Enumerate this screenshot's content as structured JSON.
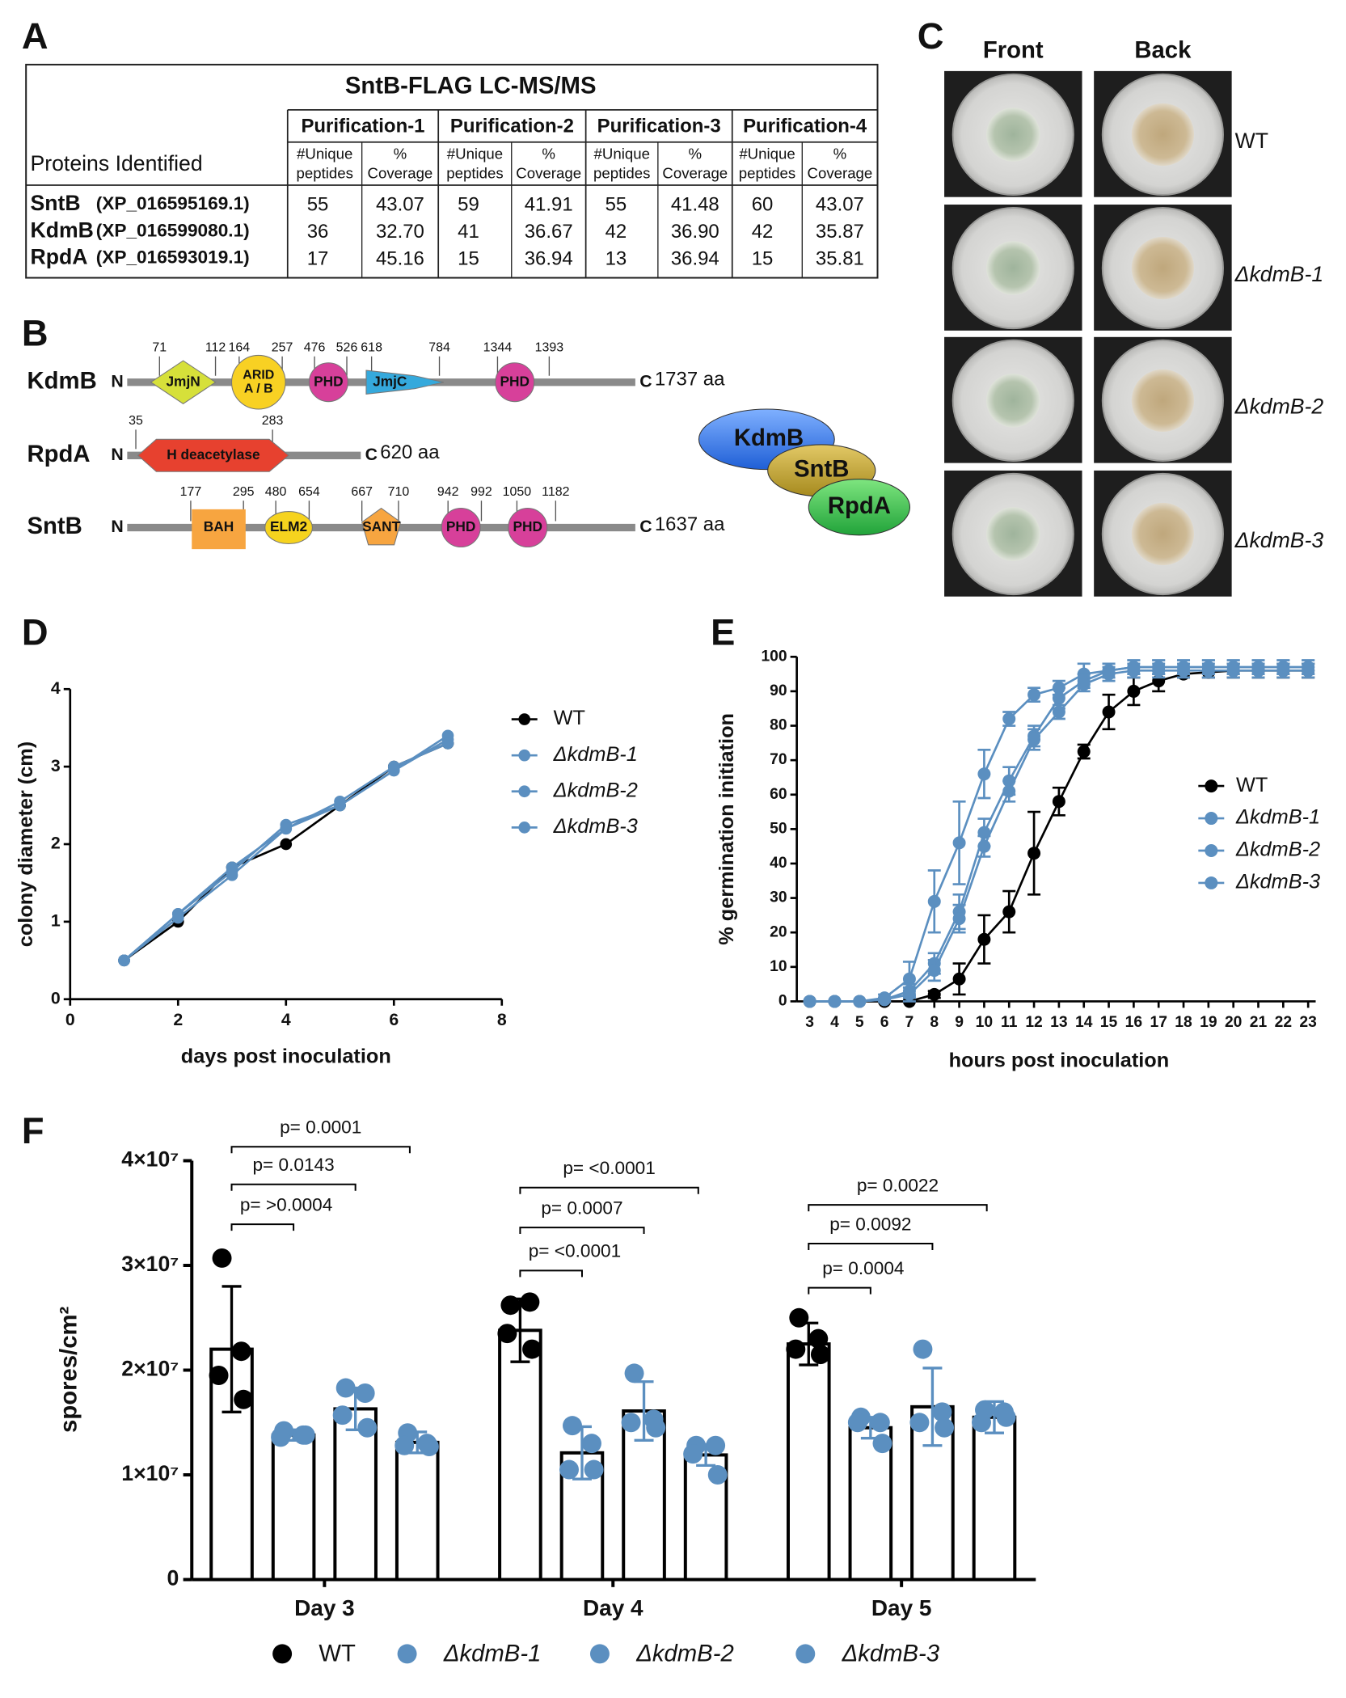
{
  "panel_labels": [
    "A",
    "B",
    "C",
    "D",
    "E",
    "F"
  ],
  "table": {
    "title": "SntB-FLAG LC-MS/MS",
    "row_header": "Proteins Identified",
    "groups": [
      "Purification-1",
      "Purification-2",
      "Purification-3",
      "Purification-4"
    ],
    "subheaders": [
      [
        "#Unique",
        "peptides"
      ],
      [
        "%",
        "Coverage"
      ]
    ],
    "rows": [
      {
        "name": "SntB",
        "accession": "(XP_016595169.1)",
        "values": [
          "55",
          "43.07",
          "59",
          "41.91",
          "55",
          "41.48",
          "60",
          "43.07"
        ]
      },
      {
        "name": "KdmB",
        "accession": "(XP_016599080.1)",
        "values": [
          "36",
          "32.70",
          "41",
          "36.67",
          "42",
          "36.90",
          "42",
          "35.87"
        ]
      },
      {
        "name": "RpdA",
        "accession": "(XP_016593019.1)",
        "values": [
          "17",
          "45.16",
          "15",
          "36.94",
          "13",
          "36.94",
          "15",
          "35.81"
        ]
      }
    ]
  },
  "domains": {
    "n_label": "N",
    "c_label": "C",
    "proteins": [
      {
        "name": "KdmB",
        "length": "1737 aa",
        "domains": [
          [
            "JmjN"
          ],
          [
            "ARID",
            "A / B"
          ],
          [
            "PHD"
          ],
          [
            "JmjC"
          ],
          [
            "PHD"
          ]
        ],
        "positions": [
          "71",
          "112",
          "164",
          "257",
          "476",
          "526",
          "618",
          "784",
          "1344",
          "1393"
        ]
      },
      {
        "name": "RpdA",
        "length": "620 aa",
        "domains": [
          [
            "H deacetylase"
          ]
        ],
        "positions": [
          "35",
          "283"
        ]
      },
      {
        "name": "SntB",
        "length": "1637 aa",
        "domains": [
          [
            "BAH"
          ],
          [
            "ELM2"
          ],
          [
            "SANT"
          ],
          [
            "PHD"
          ],
          [
            "PHD"
          ]
        ],
        "positions": [
          "177",
          "295",
          "480",
          "654",
          "667",
          "710",
          "942",
          "992",
          "1050",
          "1182"
        ]
      }
    ]
  },
  "complex": [
    "KdmB",
    "SntB",
    "RpdA"
  ],
  "colonies": {
    "columns": [
      "Front",
      "Back"
    ],
    "strains": [
      "WT",
      "ΔkdmB-1",
      "ΔkdmB-2",
      "ΔkdmB-3"
    ]
  },
  "chart_data": [
    {
      "type": "line",
      "xlabel": "days post inoculation",
      "ylabel": "colony diameter (cm)",
      "x": [
        1,
        2,
        3,
        4,
        5,
        6,
        7
      ],
      "xlim": [
        0,
        8
      ],
      "xticks": [
        0,
        2,
        4,
        6,
        8
      ],
      "ylim": [
        0,
        4
      ],
      "yticks": [
        0,
        1,
        2,
        3,
        4
      ],
      "series": [
        {
          "name": "WT",
          "color": "#000000",
          "values": [
            0.5,
            1.0,
            1.7,
            2.0,
            2.5,
            3.0,
            3.3
          ]
        },
        {
          "name": "ΔkdmB-1",
          "color": "#5b8fc0",
          "values": [
            0.5,
            1.1,
            1.65,
            2.25,
            2.5,
            2.95,
            3.4
          ]
        },
        {
          "name": "ΔkdmB-2",
          "color": "#5b8fc0",
          "values": [
            0.5,
            1.05,
            1.6,
            2.2,
            2.5,
            2.95,
            3.35
          ]
        },
        {
          "name": "ΔkdmB-3",
          "color": "#5b8fc0",
          "values": [
            0.5,
            1.1,
            1.7,
            2.2,
            2.55,
            3.0,
            3.3
          ]
        }
      ]
    },
    {
      "type": "line",
      "xlabel": "hours post inoculation",
      "ylabel": "% germination initiation",
      "x": [
        3,
        4,
        5,
        6,
        7,
        8,
        9,
        10,
        11,
        12,
        13,
        14,
        15,
        16,
        17,
        18,
        19,
        20,
        21,
        22,
        23
      ],
      "xlim": [
        3,
        23
      ],
      "xticks": [
        3,
        4,
        5,
        6,
        7,
        8,
        9,
        10,
        11,
        12,
        13,
        14,
        15,
        16,
        17,
        18,
        19,
        20,
        21,
        22,
        23
      ],
      "ylim": [
        0,
        100
      ],
      "yticks": [
        0,
        10,
        20,
        30,
        40,
        50,
        60,
        70,
        80,
        90,
        100
      ],
      "series": [
        {
          "name": "WT",
          "color": "#000000",
          "values": [
            0,
            0,
            0,
            0,
            0,
            2,
            6.5,
            18,
            26,
            43,
            58,
            72.5,
            84,
            90,
            93,
            95,
            95.5,
            96,
            96,
            96,
            96
          ],
          "errors": [
            0,
            0,
            0,
            0,
            0,
            1,
            4.5,
            7,
            6,
            12,
            4,
            2,
            5,
            4,
            3,
            1,
            1.5,
            2,
            2,
            2,
            2
          ]
        },
        {
          "name": "ΔkdmB-1",
          "color": "#5b8fc0",
          "values": [
            0,
            0,
            0,
            1,
            6.5,
            29,
            46,
            66,
            82,
            89,
            91,
            95,
            96,
            97,
            97,
            97,
            97,
            97,
            97,
            97,
            97
          ],
          "errors": [
            0,
            0,
            0,
            1,
            5,
            9,
            12,
            7,
            2,
            2,
            2,
            3,
            2,
            2,
            2,
            2,
            2,
            2,
            2,
            2,
            2
          ]
        },
        {
          "name": "ΔkdmB-2",
          "color": "#5b8fc0",
          "values": [
            0,
            0,
            0,
            0.5,
            3,
            11,
            26,
            49,
            64,
            77,
            88,
            93,
            96,
            97,
            97,
            97,
            97,
            97,
            97,
            97,
            97
          ],
          "errors": [
            0,
            0,
            0,
            0.5,
            2,
            3,
            5,
            4,
            4,
            3,
            3,
            2,
            2,
            2,
            2,
            2,
            2,
            2,
            2,
            2,
            2
          ]
        },
        {
          "name": "ΔkdmB-3",
          "color": "#5b8fc0",
          "values": [
            0,
            0,
            0,
            0.5,
            2,
            9,
            24,
            45,
            61,
            76,
            84,
            92,
            95,
            96,
            96,
            96,
            96,
            96,
            96,
            96,
            96
          ],
          "errors": [
            0,
            0,
            0,
            0.5,
            2,
            3,
            4,
            3,
            3,
            3,
            2,
            2,
            2,
            2,
            2,
            2,
            2,
            2,
            2,
            2,
            2
          ]
        }
      ]
    },
    {
      "type": "bar",
      "ylabel": "spores/cm²",
      "categories": [
        "Day 3",
        "Day 4",
        "Day 5"
      ],
      "ylim": [
        0,
        40000000
      ],
      "yticks": [
        0,
        {
          "value": 10000000,
          "label": "1×10⁷"
        },
        {
          "value": 20000000,
          "label": "2×10⁷"
        },
        {
          "value": 30000000,
          "label": "3×10⁷"
        },
        {
          "value": 40000000,
          "label": "4×10⁷"
        }
      ],
      "annotations": [
        "p= 0.0001",
        "p= 0.0143",
        "p= >0.0004",
        "p= <0.0001",
        "p= 0.0007",
        "p= <0.0001",
        "p= 0.0022",
        "p= 0.0092",
        "p= 0.0004"
      ],
      "series": [
        {
          "name": "WT",
          "color": "#000000",
          "values": [
            22000000,
            23800000,
            22500000
          ],
          "errors": [
            6000000,
            3000000,
            2000000
          ],
          "points": [
            [
              30700000,
              21800000,
              19500000,
              17200000
            ],
            [
              26200000,
              26500000,
              23500000,
              22000000
            ],
            [
              25000000,
              23000000,
              22000000,
              21500000
            ]
          ]
        },
        {
          "name": "ΔkdmB-1",
          "color": "#5b8fc0",
          "values": [
            13800000,
            12100000,
            14500000
          ],
          "errors": [
            500000,
            2500000,
            1000000
          ],
          "points": [
            [
              14200000,
              13800000,
              13600000,
              13800000
            ],
            [
              14700000,
              13000000,
              10500000,
              10500000
            ],
            [
              15500000,
              15000000,
              15000000,
              13000000
            ]
          ]
        },
        {
          "name": "ΔkdmB-2",
          "color": "#5b8fc0",
          "values": [
            16300000,
            16100000,
            16500000
          ],
          "errors": [
            2000000,
            2800000,
            3700000
          ],
          "points": [
            [
              18300000,
              17800000,
              15700000,
              14500000
            ],
            [
              19700000,
              15300000,
              15000000,
              14500000
            ],
            [
              22000000,
              16000000,
              15000000,
              14500000
            ]
          ]
        },
        {
          "name": "ΔkdmB-3",
          "color": "#5b8fc0",
          "values": [
            13100000,
            11900000,
            15500000
          ],
          "errors": [
            1000000,
            1000000,
            1500000
          ],
          "points": [
            [
              14000000,
              13000000,
              12800000,
              12700000
            ],
            [
              12800000,
              12800000,
              12000000,
              10000000
            ],
            [
              16200000,
              16000000,
              15000000,
              15500000
            ]
          ]
        }
      ]
    }
  ]
}
